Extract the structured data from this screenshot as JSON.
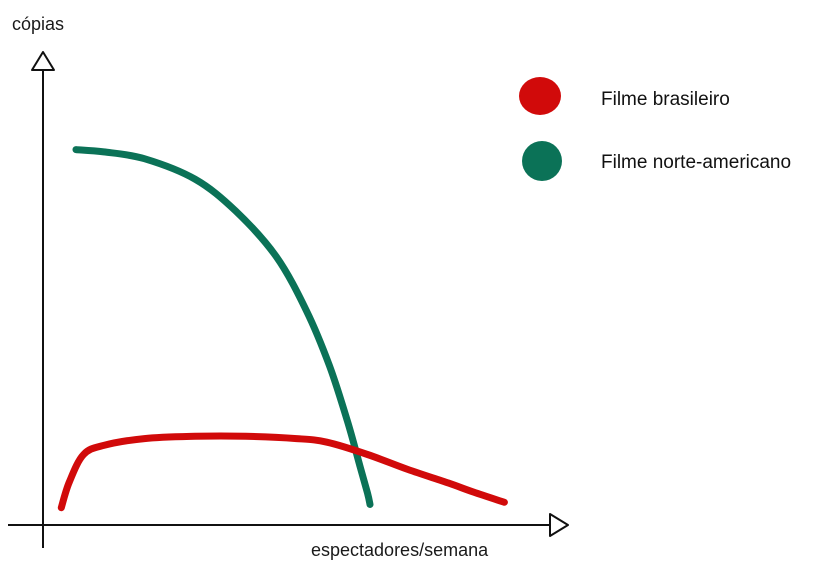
{
  "chart_data": {
    "type": "line",
    "title": "",
    "ylabel": "cópias",
    "xlabel": "espectadores/semana",
    "grid": false,
    "legend_position": "top-right",
    "xlim": [
      0,
      10
    ],
    "ylim": [
      0,
      10
    ],
    "series": [
      {
        "name": "Filme brasileiro",
        "color": "#d10a0a",
        "x": [
          0.36,
          0.52,
          0.8,
          1.2,
          2.0,
          3.0,
          4.0,
          5.0,
          5.6,
          6.4,
          7.2,
          8.0,
          8.5,
          9.1
        ],
        "y": [
          0.38,
          0.95,
          1.55,
          1.75,
          1.9,
          1.95,
          1.95,
          1.9,
          1.82,
          1.55,
          1.22,
          0.92,
          0.72,
          0.5
        ]
      },
      {
        "name": "Filme norte-americano",
        "color": "#0b7257",
        "x": [
          0.65,
          1.2,
          2.0,
          3.0,
          3.8,
          4.6,
          5.2,
          5.65,
          6.0,
          6.25,
          6.4,
          6.45
        ],
        "y": [
          8.25,
          8.2,
          8.05,
          7.6,
          6.9,
          5.9,
          4.7,
          3.5,
          2.3,
          1.3,
          0.7,
          0.45
        ]
      }
    ]
  }
}
